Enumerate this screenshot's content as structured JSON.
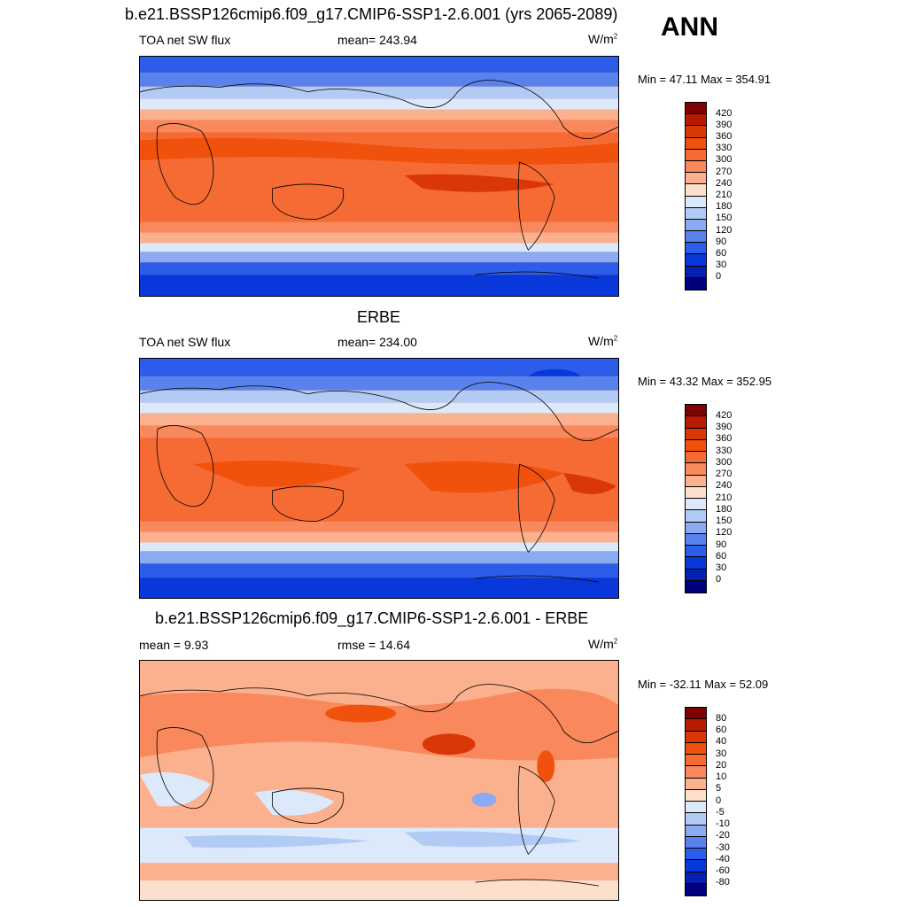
{
  "header": {
    "case_title": "b.e21.BSSP126cmip6.f09_g17.CMIP6-SSP1-2.6.001 (yrs 2065-2089)",
    "season": "ANN"
  },
  "panels": [
    {
      "id": "model",
      "left_label": "TOA net SW flux",
      "center_label": "mean= 243.94",
      "units_base": "W/m",
      "units_exp": "2",
      "minmax": "Min =  47.11 Max = 354.91",
      "colorbar": {
        "levels": [
          "420",
          "390",
          "360",
          "330",
          "300",
          "270",
          "240",
          "210",
          "180",
          "150",
          "120",
          "90",
          "60",
          "30",
          "0"
        ],
        "colors": [
          "#7f0000",
          "#b81a00",
          "#d93806",
          "#f0510c",
          "#f66a34",
          "#f9885c",
          "#fbb08e",
          "#fde0cc",
          "#dbe9fb",
          "#b2cbf5",
          "#8caaf1",
          "#5a82ec",
          "#2c5cea",
          "#0838d9",
          "#0520b0",
          "#00007a"
        ]
      }
    },
    {
      "id": "obs",
      "title": "ERBE",
      "left_label": "TOA net SW flux",
      "center_label": "mean= 234.00",
      "units_base": "W/m",
      "units_exp": "2",
      "minmax": "Min =  43.32 Max = 352.95",
      "colorbar": {
        "levels": [
          "420",
          "390",
          "360",
          "330",
          "300",
          "270",
          "240",
          "210",
          "180",
          "150",
          "120",
          "90",
          "60",
          "30",
          "0"
        ],
        "colors": [
          "#7f0000",
          "#b81a00",
          "#d93806",
          "#f0510c",
          "#f66a34",
          "#f9885c",
          "#fbb08e",
          "#fde0cc",
          "#dbe9fb",
          "#b2cbf5",
          "#8caaf1",
          "#5a82ec",
          "#2c5cea",
          "#0838d9",
          "#0520b0",
          "#00007a"
        ]
      }
    },
    {
      "id": "diff",
      "title": "b.e21.BSSP126cmip6.f09_g17.CMIP6-SSP1-2.6.001 - ERBE",
      "left_label": "mean =   9.93",
      "center_label": "rmse =  14.64",
      "units_base": "W/m",
      "units_exp": "2",
      "minmax": "Min = -32.11 Max =  52.09",
      "colorbar": {
        "levels": [
          "80",
          "60",
          "40",
          "30",
          "20",
          "10",
          "5",
          "0",
          "-5",
          "-10",
          "-20",
          "-30",
          "-40",
          "-60",
          "-80"
        ],
        "colors": [
          "#7f0000",
          "#b81a00",
          "#d93806",
          "#f0510c",
          "#f66a34",
          "#f9885c",
          "#fbb08e",
          "#fde0cc",
          "#dbe9fb",
          "#b2cbf5",
          "#8caaf1",
          "#5a82ec",
          "#2c5cea",
          "#0838d9",
          "#0520b0",
          "#00007a"
        ]
      }
    }
  ]
}
